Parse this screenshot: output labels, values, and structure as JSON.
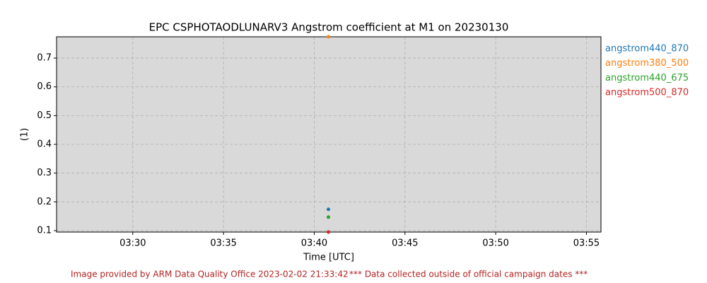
{
  "chart_data": {
    "type": "scatter",
    "title": "EPC CSPHOTAODLUNARV3 Angstrom coefficient at M1 on 20230130",
    "x_label": "Time [UTC]",
    "y_label": "(1)",
    "series": [
      {
        "name": "angstrom440_870",
        "color": "#1f77b4",
        "x": [
          220.78
        ],
        "values": [
          0.174
        ]
      },
      {
        "name": "angstrom380_500",
        "color": "#ff7f0e",
        "x": [
          220.78
        ],
        "values": [
          0.774
        ]
      },
      {
        "name": "angstrom440_675",
        "color": "#2ca02c",
        "x": [
          220.78
        ],
        "values": [
          0.147
        ]
      },
      {
        "name": "angstrom500_870",
        "color": "#d62728",
        "x": [
          220.78
        ],
        "values": [
          0.095
        ]
      }
    ],
    "xlim": [
      205.8,
      235.8
    ],
    "xticks": [
      {
        "value": 210,
        "label": "03:30"
      },
      {
        "value": 215,
        "label": "03:35"
      },
      {
        "value": 220,
        "label": "03:40"
      },
      {
        "value": 225,
        "label": "03:45"
      },
      {
        "value": 230,
        "label": "03:50"
      },
      {
        "value": 235,
        "label": "03:55"
      }
    ],
    "ylim": [
      0.095,
      0.774
    ],
    "yticks": [
      0.1,
      0.2,
      0.3,
      0.4,
      0.5,
      0.6,
      0.7
    ],
    "grid": true,
    "legend": "outside-right",
    "background": "#d9d9d9",
    "footer": "Image provided by ARM Data Quality Office 2023-02-02 21:33:42",
    "footer_note": "*** Data collected outside of official campaign dates ***"
  }
}
